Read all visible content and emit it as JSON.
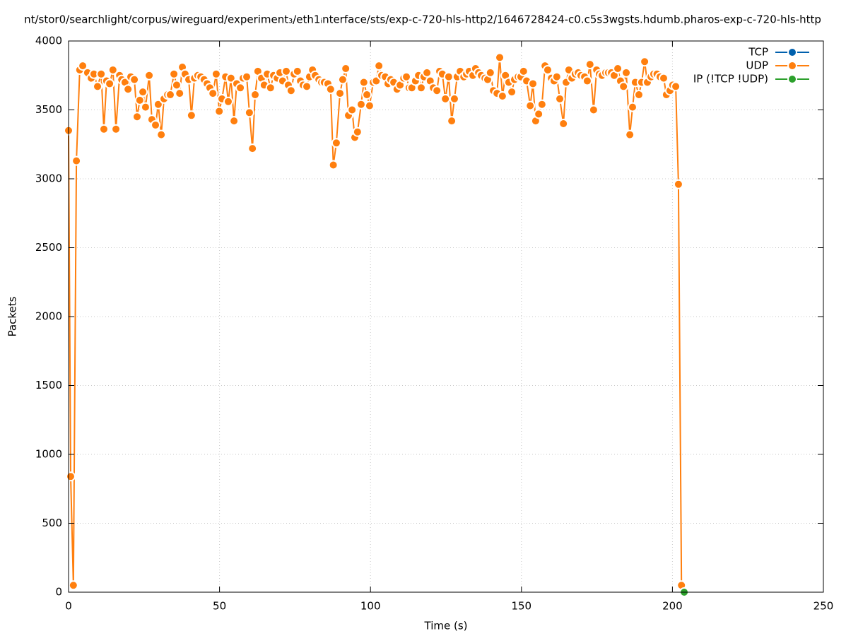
{
  "chart_data": {
    "type": "line",
    "title": "nt/stor0/searchlight/corpus/wireguard/experiment₃/eth1ᵢnterface/sts/exp-c-720-hls-http2/1646728424-c0.c5s3wgsts.hdumb.pharos-exp-c-720-hls-http",
    "x_label": "Time (s)",
    "y_label": "Packets",
    "xlim": [
      0,
      250
    ],
    "xticks": [
      0,
      50,
      100,
      150,
      200,
      250
    ],
    "ylim": [
      0,
      4000
    ],
    "yticks": [
      0,
      500,
      1000,
      1500,
      2000,
      2500,
      3000,
      3500,
      4000
    ],
    "grid": true,
    "legend": "top-right",
    "series": [
      {
        "name": "TCP",
        "color": "#0060ad",
        "x": [],
        "values": []
      },
      {
        "name": "UDP",
        "color": "#ff7f0e",
        "x": [
          0,
          0.7,
          1.6,
          2.6,
          3.7,
          4.7,
          6.3,
          7.5,
          8.4,
          9.6,
          10.8,
          11.7,
          12.6,
          13.6,
          14.7,
          15.7,
          16.9,
          17.6,
          18.7,
          19.7,
          20.6,
          21.8,
          22.7,
          23.6,
          24.6,
          25.5,
          26.7,
          27.6,
          28.8,
          29.7,
          30.7,
          31.6,
          32.8,
          33.7,
          34.9,
          35.8,
          36.8,
          37.7,
          38.6,
          39.8,
          40.7,
          41.7,
          42.8,
          43.8,
          44.9,
          45.9,
          46.8,
          47.8,
          48.9,
          49.9,
          50.8,
          52.0,
          52.9,
          53.8,
          54.8,
          55.7,
          56.9,
          57.8,
          59.0,
          59.9,
          60.9,
          61.8,
          62.7,
          63.9,
          64.8,
          65.8,
          66.9,
          67.9,
          69.1,
          70.0,
          70.9,
          72.1,
          72.8,
          73.7,
          74.7,
          75.8,
          76.8,
          77.7,
          78.9,
          79.8,
          80.8,
          81.7,
          82.9,
          83.8,
          84.7,
          85.9,
          86.8,
          87.7,
          88.7,
          89.9,
          90.8,
          91.8,
          92.7,
          93.9,
          94.8,
          95.7,
          96.9,
          97.8,
          98.8,
          99.7,
          100.9,
          101.9,
          102.8,
          103.7,
          104.9,
          105.8,
          106.7,
          107.7,
          108.8,
          109.8,
          111.0,
          111.9,
          112.8,
          113.7,
          114.9,
          115.9,
          116.8,
          117.7,
          118.7,
          119.8,
          120.8,
          122.0,
          122.9,
          123.8,
          124.8,
          125.9,
          126.9,
          127.8,
          128.7,
          129.7,
          130.9,
          131.8,
          132.7,
          133.9,
          134.8,
          135.8,
          136.7,
          137.9,
          138.8,
          139.7,
          140.7,
          141.9,
          142.8,
          143.7,
          144.7,
          145.8,
          146.8,
          147.7,
          148.9,
          149.8,
          150.7,
          151.7,
          152.9,
          153.8,
          154.7,
          155.7,
          156.8,
          157.8,
          158.7,
          159.9,
          160.8,
          161.7,
          162.7,
          163.9,
          164.8,
          165.7,
          166.7,
          167.8,
          168.8,
          169.7,
          170.9,
          171.8,
          172.7,
          173.9,
          174.9,
          175.8,
          176.7,
          177.9,
          178.8,
          179.8,
          180.7,
          181.9,
          182.8,
          183.8,
          184.7,
          185.9,
          186.8,
          187.7,
          188.9,
          189.8,
          190.8,
          191.7,
          192.9,
          193.8,
          194.9,
          195.9,
          197.1,
          198.0,
          199.2,
          200.1,
          201.1,
          202.0,
          203.0
        ],
        "values": [
          3350,
          840,
          50,
          3130,
          3790,
          3820,
          3770,
          3730,
          3760,
          3670,
          3760,
          3360,
          3710,
          3690,
          3790,
          3360,
          3750,
          3720,
          3700,
          3650,
          3740,
          3720,
          3450,
          3570,
          3630,
          3520,
          3750,
          3430,
          3390,
          3540,
          3320,
          3580,
          3610,
          3610,
          3760,
          3680,
          3620,
          3810,
          3760,
          3720,
          3460,
          3730,
          3750,
          3740,
          3720,
          3690,
          3660,
          3620,
          3760,
          3490,
          3580,
          3740,
          3560,
          3730,
          3420,
          3690,
          3660,
          3730,
          3740,
          3480,
          3220,
          3610,
          3780,
          3730,
          3680,
          3760,
          3660,
          3750,
          3730,
          3770,
          3710,
          3780,
          3680,
          3640,
          3760,
          3780,
          3710,
          3680,
          3670,
          3740,
          3790,
          3750,
          3720,
          3700,
          3700,
          3690,
          3650,
          3100,
          3260,
          3620,
          3720,
          3800,
          3460,
          3500,
          3300,
          3340,
          3540,
          3700,
          3610,
          3530,
          3700,
          3710,
          3820,
          3750,
          3740,
          3690,
          3720,
          3700,
          3650,
          3680,
          3730,
          3740,
          3660,
          3660,
          3710,
          3750,
          3660,
          3740,
          3770,
          3710,
          3660,
          3640,
          3780,
          3760,
          3580,
          3740,
          3420,
          3580,
          3740,
          3780,
          3740,
          3760,
          3780,
          3750,
          3800,
          3770,
          3750,
          3730,
          3720,
          3770,
          3640,
          3620,
          3880,
          3600,
          3750,
          3700,
          3630,
          3720,
          3740,
          3740,
          3780,
          3710,
          3530,
          3690,
          3420,
          3470,
          3540,
          3820,
          3790,
          3730,
          3710,
          3740,
          3580,
          3400,
          3700,
          3790,
          3730,
          3760,
          3770,
          3750,
          3740,
          3710,
          3830,
          3500,
          3790,
          3760,
          3750,
          3770,
          3770,
          3770,
          3750,
          3800,
          3710,
          3670,
          3770,
          3320,
          3520,
          3700,
          3610,
          3700,
          3850,
          3700,
          3740,
          3760,
          3760,
          3740,
          3730,
          3610,
          3640,
          3680,
          3670,
          2960,
          50
        ]
      },
      {
        "name": "IP (!TCP  !UDP)",
        "color": "#2ca02c",
        "x": [
          203.9
        ],
        "values": [
          0
        ]
      }
    ]
  }
}
